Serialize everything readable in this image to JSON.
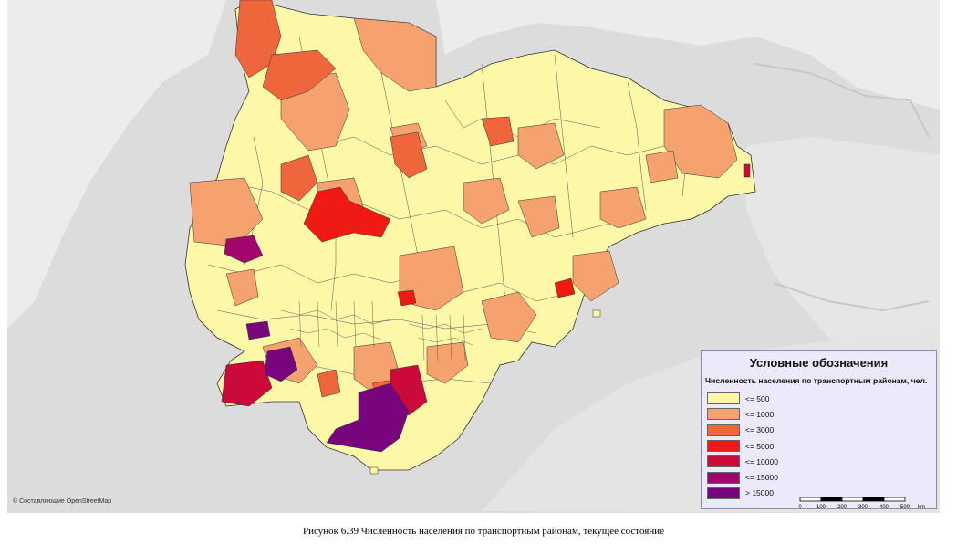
{
  "map": {
    "attribution": "© Составляющие OpenStreetMap",
    "classes_colors": [
      "#fdf7a8",
      "#f6a26e",
      "#f0663c",
      "#ef1a14",
      "#cc0a3a",
      "#a3066a",
      "#78047e"
    ],
    "land_color": "#dcdcdc",
    "water_color": "#ededed"
  },
  "legend": {
    "title": "Условные обозначения",
    "subtitle": "Численность населения по транспортным районам, чел.",
    "items": [
      {
        "label": "<= 500",
        "color": "#fdf7a8"
      },
      {
        "label": "<= 1000",
        "color": "#f6a26e"
      },
      {
        "label": "<= 3000",
        "color": "#f0663c"
      },
      {
        "label": "<= 5000",
        "color": "#ef1a14"
      },
      {
        "label": "<= 10000",
        "color": "#cc0a3a"
      },
      {
        "label": "<= 15000",
        "color": "#a3066a"
      },
      {
        "label": "> 15000",
        "color": "#78047e"
      }
    ]
  },
  "scalebar": {
    "labels": [
      "0",
      "100",
      "200",
      "300",
      "400",
      "500"
    ],
    "unit": "km"
  },
  "caption": "Рисунок 6.39 Численность населения по транспортным районам, текущее состояние"
}
